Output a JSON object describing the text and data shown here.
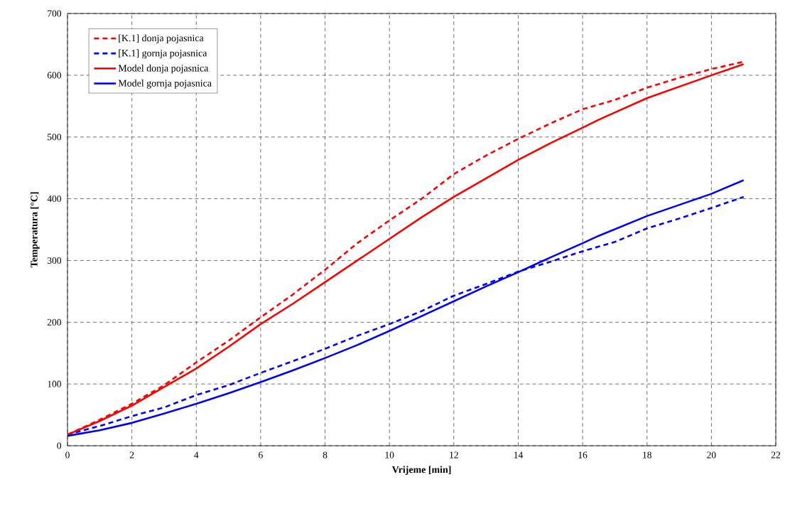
{
  "chart_data": {
    "type": "line",
    "xlabel": "Vrijeme [min]",
    "ylabel": "Temperatura [°C]",
    "xlim": [
      0,
      22
    ],
    "ylim": [
      0,
      700
    ],
    "xticks": [
      0,
      2,
      4,
      6,
      8,
      10,
      12,
      14,
      16,
      18,
      20,
      22
    ],
    "yticks": [
      0,
      100,
      200,
      300,
      400,
      500,
      600,
      700
    ],
    "grid": true,
    "legend": "top left",
    "series": [
      {
        "name": "[K.1] donja pojasnica",
        "color": "#ff0000",
        "line_style": "dashed",
        "x": [
          0,
          1,
          2,
          3,
          4,
          5,
          6,
          7,
          8,
          9,
          10,
          11,
          12,
          13,
          14,
          15,
          16,
          17,
          18,
          19,
          20,
          21
        ],
        "values": [
          18,
          42,
          68,
          98,
          135,
          170,
          208,
          245,
          285,
          328,
          365,
          400,
          440,
          470,
          497,
          522,
          545,
          560,
          580,
          596,
          610,
          622
        ]
      },
      {
        "name": "[K.1] gornja pojasnica",
        "color": "#0000ff",
        "line_style": "dashed",
        "x": [
          0,
          1,
          2,
          3,
          4,
          5,
          6,
          7,
          8,
          9,
          10,
          11,
          12,
          13,
          14,
          15,
          16,
          17,
          18,
          19,
          20,
          21
        ],
        "values": [
          18,
          32,
          48,
          62,
          82,
          98,
          118,
          137,
          157,
          178,
          197,
          218,
          243,
          262,
          282,
          298,
          315,
          330,
          352,
          368,
          385,
          403
        ]
      },
      {
        "name": "Model donja pojasnica",
        "color": "#ff0000",
        "line_style": "solid",
        "x": [
          0,
          1,
          2,
          3,
          4,
          5,
          6,
          7,
          8,
          9,
          10,
          11,
          12,
          13,
          14,
          15,
          16,
          16.5,
          18,
          20,
          21
        ],
        "values": [
          18,
          40,
          65,
          95,
          125,
          160,
          197,
          230,
          265,
          300,
          335,
          370,
          403,
          433,
          463,
          490,
          515,
          528,
          563,
          600,
          618
        ]
      },
      {
        "name": "Model gornja pojasnica",
        "color": "#0000ff",
        "line_style": "solid",
        "x": [
          0,
          1,
          2,
          3,
          4,
          5,
          6,
          7,
          8,
          9,
          10,
          11,
          12,
          13,
          14,
          15,
          16,
          16.5,
          18,
          20,
          21
        ],
        "values": [
          16,
          25,
          37,
          52,
          68,
          85,
          103,
          122,
          142,
          163,
          186,
          210,
          234,
          258,
          281,
          305,
          328,
          340,
          372,
          408,
          430
        ]
      }
    ]
  }
}
